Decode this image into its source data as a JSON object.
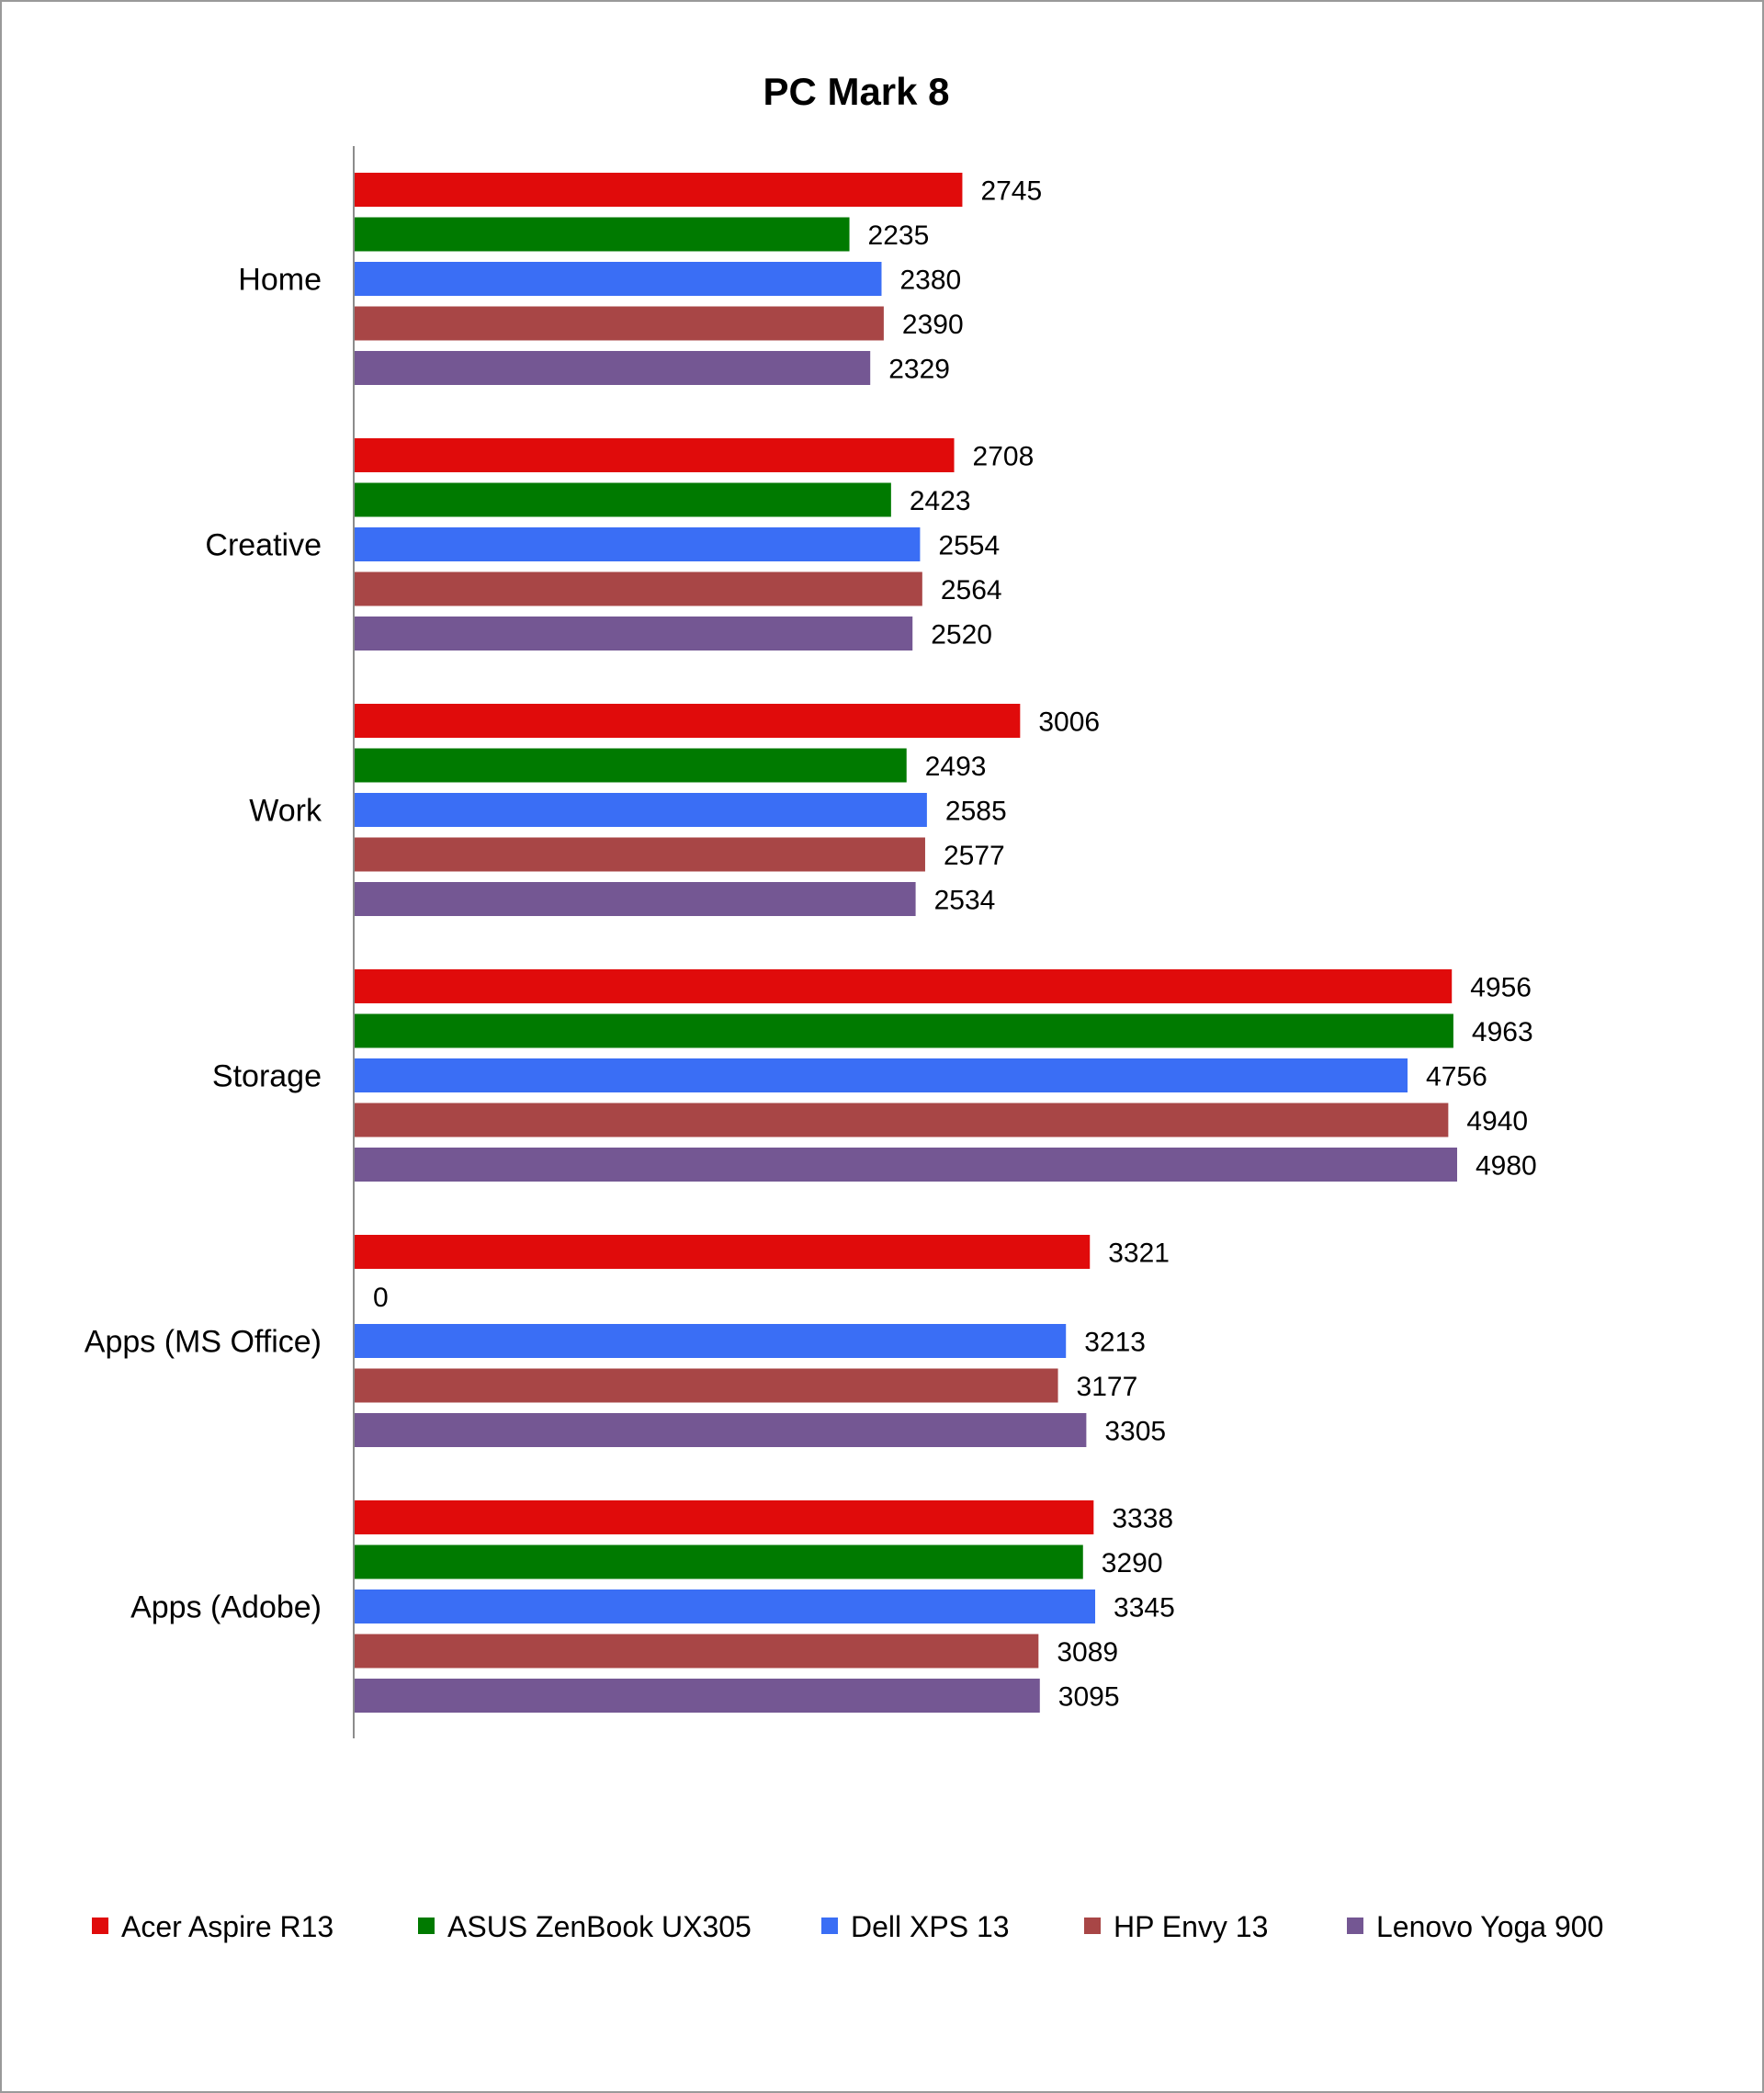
{
  "chart_data": {
    "type": "bar",
    "orientation": "horizontal",
    "title": "PC Mark 8",
    "xlabel": "",
    "ylabel": "",
    "xlim": [
      0,
      5000
    ],
    "grid": false,
    "legend_position": "bottom",
    "categories": [
      "Home",
      "Creative",
      "Work",
      "Storage",
      "Apps (MS Office)",
      "Apps (Adobe)"
    ],
    "series": [
      {
        "name": "Acer Aspire R13",
        "color": "#e00b0b",
        "values": [
          2745,
          2708,
          3006,
          4956,
          3321,
          3338
        ]
      },
      {
        "name": "ASUS ZenBook UX305",
        "color": "#007a00",
        "values": [
          2235,
          2423,
          2493,
          4963,
          0,
          3290
        ]
      },
      {
        "name": "Dell XPS 13",
        "color": "#3a6ef5",
        "values": [
          2380,
          2554,
          2585,
          4756,
          3213,
          3345
        ]
      },
      {
        "name": "HP Envy 13",
        "color": "#a84646",
        "values": [
          2390,
          2564,
          2577,
          4940,
          3177,
          3089
        ]
      },
      {
        "name": "Lenovo Yoga 900",
        "color": "#745793",
        "values": [
          2329,
          2520,
          2534,
          4980,
          3305,
          3095
        ]
      }
    ]
  },
  "colors": {
    "axis": "#8c8c8c",
    "text": "#000000",
    "border": "#9a9a9a"
  }
}
